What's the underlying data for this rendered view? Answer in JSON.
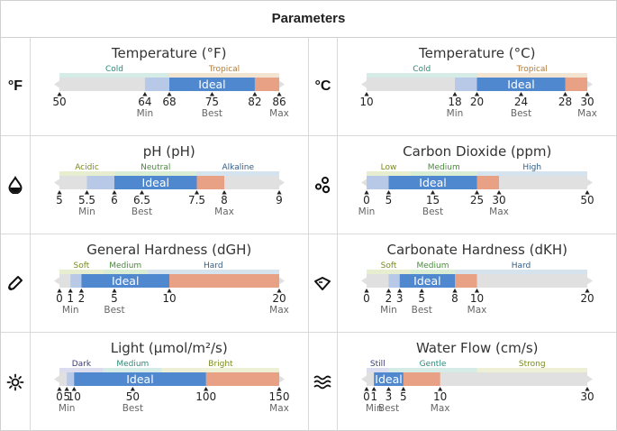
{
  "header": {
    "title": "Parameters"
  },
  "colors": {
    "track": "#e0e0e0",
    "ok": "#b7c9e6",
    "ideal": "#4f88cf",
    "over": "#e8a184",
    "label_ideal": "#ffffff"
  },
  "params": [
    {
      "key": "temp_f",
      "title": "Temperature (°F)",
      "icon": "fahrenheit-icon",
      "icon_text": "°F",
      "domain": [
        50,
        86
      ],
      "zones": [
        {
          "label": "Cold",
          "from": 50,
          "to": 68,
          "color": "#d5ebe6",
          "text_color": "#2a8a7a"
        },
        {
          "label": "Tropical",
          "from": 68,
          "to": 86,
          "color": "#f3e3d1",
          "text_color": "#b07a3a"
        }
      ],
      "min": 64,
      "ideal": [
        68,
        82
      ],
      "max": 86,
      "best": 75,
      "ideal_label": "Ideal",
      "ticks": [
        50,
        64,
        68,
        75,
        82,
        86
      ],
      "tick_labels": {
        "min": "Min",
        "best": "Best",
        "max": "Max"
      }
    },
    {
      "key": "temp_c",
      "title": "Temperature (°C)",
      "icon": "celsius-icon",
      "icon_text": "°C",
      "domain": [
        10,
        30
      ],
      "zones": [
        {
          "label": "Cold",
          "from": 10,
          "to": 20,
          "color": "#d5ebe6",
          "text_color": "#2a8a7a"
        },
        {
          "label": "Tropical",
          "from": 20,
          "to": 30,
          "color": "#f3e3d1",
          "text_color": "#b07a3a"
        }
      ],
      "min": 18,
      "ideal": [
        20,
        28
      ],
      "max": 30,
      "best": 24,
      "ideal_label": "Ideal",
      "ticks": [
        10,
        18,
        20,
        24,
        28,
        30
      ],
      "tick_labels": {
        "min": "Min",
        "best": "Best",
        "max": "Max"
      }
    },
    {
      "key": "ph",
      "title": "pH (pH)",
      "icon": "water-drop-icon",
      "icon_text": "",
      "domain": [
        5,
        9
      ],
      "zones": [
        {
          "label": "Acidic",
          "from": 5,
          "to": 6,
          "color": "#e7edcf",
          "text_color": "#7a8a1a"
        },
        {
          "label": "Neutral",
          "from": 6,
          "to": 7.5,
          "color": "#d9ecd4",
          "text_color": "#4a8a3a"
        },
        {
          "label": "Alkaline",
          "from": 7.5,
          "to": 9,
          "color": "#d5e3ef",
          "text_color": "#2e5d8a"
        }
      ],
      "min": 5.5,
      "ideal": [
        6,
        7.5
      ],
      "max": 8,
      "best": 6.5,
      "ideal_label": "Ideal",
      "ticks": [
        5,
        5.5,
        6,
        6.5,
        7.5,
        8,
        9
      ],
      "tick_labels": {
        "min": "Min",
        "best": "Best",
        "max": "Max"
      }
    },
    {
      "key": "co2",
      "title": "Carbon Dioxide (ppm)",
      "icon": "bubbles-icon",
      "icon_text": "",
      "domain": [
        0,
        50
      ],
      "zones": [
        {
          "label": "Low",
          "from": 0,
          "to": 10,
          "color": "#e7edcf",
          "text_color": "#7a8a1a"
        },
        {
          "label": "Medium",
          "from": 10,
          "to": 25,
          "color": "#d9ecd4",
          "text_color": "#4a8a3a"
        },
        {
          "label": "High",
          "from": 25,
          "to": 50,
          "color": "#d5e3ef",
          "text_color": "#2e5d8a"
        }
      ],
      "min": 0,
      "ideal": [
        5,
        25
      ],
      "max": 30,
      "best": 15,
      "ideal_label": "Ideal",
      "ticks": [
        0,
        5,
        15,
        25,
        30,
        50
      ],
      "tick_labels": {
        "min": "Min",
        "best": "Best",
        "max": "Max"
      }
    },
    {
      "key": "gh",
      "title": "General Hardness (dGH)",
      "icon": "dropper-icon",
      "icon_text": "",
      "domain": [
        0,
        20
      ],
      "zones": [
        {
          "label": "Soft",
          "from": 0,
          "to": 4,
          "color": "#e7edcf",
          "text_color": "#7a8a1a"
        },
        {
          "label": "Medium",
          "from": 4,
          "to": 8,
          "color": "#d9ecd4",
          "text_color": "#4a8a3a"
        },
        {
          "label": "Hard",
          "from": 8,
          "to": 20,
          "color": "#d5e3ef",
          "text_color": "#2e5d8a"
        }
      ],
      "min": 1,
      "ideal": [
        2,
        10
      ],
      "max": 20,
      "best": 5,
      "ideal_label": "Ideal",
      "ticks": [
        0,
        1,
        2,
        5,
        10,
        20
      ],
      "tick_labels": {
        "min": "Min",
        "best": "Best",
        "max": "Max"
      }
    },
    {
      "key": "kh",
      "title": "Carbonate Hardness (dKH)",
      "icon": "gem-icon",
      "icon_text": "",
      "domain": [
        0,
        20
      ],
      "zones": [
        {
          "label": "Soft",
          "from": 0,
          "to": 4,
          "color": "#e7edcf",
          "text_color": "#7a8a1a"
        },
        {
          "label": "Medium",
          "from": 4,
          "to": 8,
          "color": "#d9ecd4",
          "text_color": "#4a8a3a"
        },
        {
          "label": "Hard",
          "from": 8,
          "to": 20,
          "color": "#d5e3ef",
          "text_color": "#2e5d8a"
        }
      ],
      "min": 2,
      "ideal": [
        3,
        8
      ],
      "max": 10,
      "best": 5,
      "ideal_label": "Ideal",
      "ticks": [
        0,
        2,
        3,
        5,
        8,
        10,
        20
      ],
      "tick_labels": {
        "min": "Min",
        "best": "Best",
        "max": "Max"
      }
    },
    {
      "key": "light",
      "title": "Light (μmol/m²/s)",
      "icon": "sun-icon",
      "icon_text": "",
      "domain": [
        0,
        150
      ],
      "zones": [
        {
          "label": "Dark",
          "from": 0,
          "to": 30,
          "color": "#dcdcef",
          "text_color": "#3a3a7a"
        },
        {
          "label": "Medium",
          "from": 30,
          "to": 70,
          "color": "#d5ebe6",
          "text_color": "#2a8a7a"
        },
        {
          "label": "Bright",
          "from": 70,
          "to": 150,
          "color": "#eef0d6",
          "text_color": "#7a8a1a"
        }
      ],
      "min": 5,
      "ideal": [
        10,
        100
      ],
      "max": 150,
      "best": 50,
      "ideal_label": "Ideal",
      "ticks": [
        0,
        5,
        10,
        50,
        100,
        150
      ],
      "tick_labels": {
        "min": "Min",
        "best": "Best",
        "max": "Max"
      }
    },
    {
      "key": "flow",
      "title": "Water Flow (cm/s)",
      "icon": "waves-icon",
      "icon_text": "",
      "domain": [
        0,
        30
      ],
      "zones": [
        {
          "label": "Still",
          "from": 0,
          "to": 3,
          "color": "#dcdcef",
          "text_color": "#3a3a7a"
        },
        {
          "label": "Gentle",
          "from": 3,
          "to": 15,
          "color": "#d5ebe6",
          "text_color": "#2a8a7a"
        },
        {
          "label": "Strong",
          "from": 15,
          "to": 30,
          "color": "#eef0d6",
          "text_color": "#7a8a1a"
        }
      ],
      "min": 1,
      "ideal": [
        1,
        5
      ],
      "max": 10,
      "best": 3,
      "ideal_label": "Ideal",
      "ticks": [
        0,
        1,
        3,
        5,
        10,
        30
      ],
      "tick_labels": {
        "min": "Min",
        "best": "Best",
        "max": "Max"
      }
    }
  ]
}
